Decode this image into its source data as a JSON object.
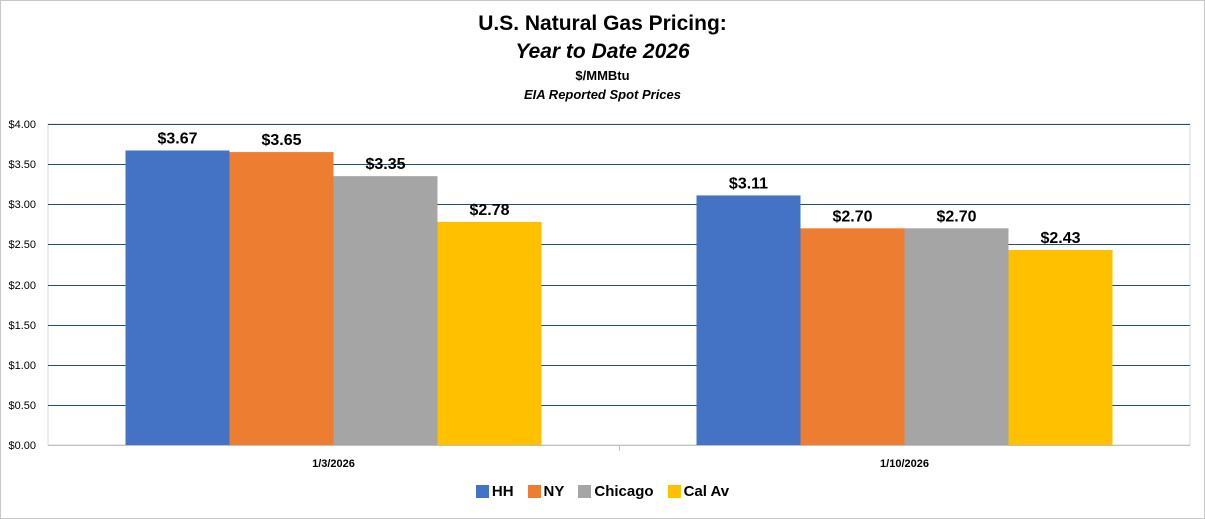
{
  "title": "U.S. Natural Gas Pricing:",
  "subtitle": "Year to Date 2026",
  "unit_label": "$/MMBtu",
  "source_label": "EIA Reported Spot Prices",
  "colors": {
    "HH": "#4472C4",
    "NY": "#ED7D31",
    "Chicago": "#A5A5A5",
    "Cal Av": "#FFC000",
    "gridline": "#1F4E79"
  },
  "chart_data": {
    "type": "bar",
    "title": "U.S. Natural Gas Pricing: Year to Date 2026",
    "xlabel": "",
    "ylabel": "$/MMBtu",
    "ylim": [
      0,
      4
    ],
    "yticks": [
      "$0.00",
      "$0.50",
      "$1.00",
      "$1.50",
      "$2.00",
      "$2.50",
      "$3.00",
      "$3.50",
      "$4.00"
    ],
    "categories": [
      "1/3/2026",
      "1/10/2026"
    ],
    "series": [
      {
        "name": "HH",
        "values": [
          3.67,
          3.11
        ],
        "labels": [
          "$3.67",
          "$3.11"
        ]
      },
      {
        "name": "NY",
        "values": [
          3.65,
          2.7
        ],
        "labels": [
          "$3.65",
          "$2.70"
        ]
      },
      {
        "name": "Chicago",
        "values": [
          3.35,
          2.7
        ],
        "labels": [
          "$3.35",
          "$2.70"
        ]
      },
      {
        "name": "Cal Av",
        "values": [
          2.78,
          2.43
        ],
        "labels": [
          "$2.78",
          "$2.43"
        ]
      }
    ],
    "legend_position": "bottom",
    "grid": true
  }
}
